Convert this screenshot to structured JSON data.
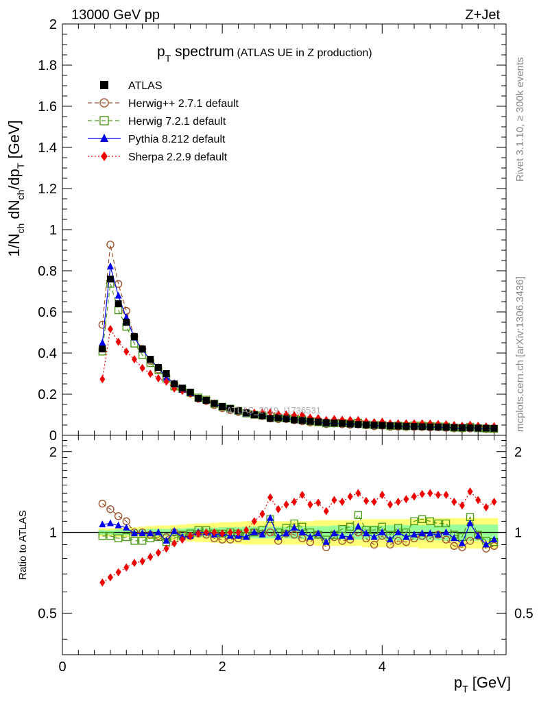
{
  "chart_data": {
    "type": "line",
    "header": {
      "left": "13000 GeV pp",
      "right": "Z+Jet"
    },
    "title": {
      "main": "p",
      "main_sub": "T",
      "main_rest": " spectrum",
      "small": "(ATLAS UE in Z production)"
    },
    "ylabel": {
      "a": "1/N",
      "a_sub": "ch",
      "b": " dN",
      "b_sub": "ch",
      "c": "/dp",
      "c_sub": "T",
      "d": " [GeV]"
    },
    "xlabel": {
      "a": "p",
      "a_sub": "T",
      "b": " [GeV]"
    },
    "ratio_ylabel": "Ratio to ATLAS",
    "side_text_top": "Rivet 3.1.10, ≥ 300k events",
    "side_text_bottom": "mcplots.cern.ch [arXiv:1306.3436]",
    "watermark": "ATLAS_2019_I1736531",
    "xlim": [
      0,
      5.55
    ],
    "ylim": [
      0,
      2
    ],
    "ratio_ylim": [
      0.35,
      2.3
    ],
    "x_ticks": [
      "0",
      "2",
      "4"
    ],
    "x_tick_values": [
      0,
      2,
      4
    ],
    "y_ticks": [
      "0",
      "0.2",
      "0.4",
      "0.6",
      "0.8",
      "1",
      "1.2",
      "1.4",
      "1.6",
      "1.8",
      "2"
    ],
    "y_tick_values": [
      0,
      0.2,
      0.4,
      0.6,
      0.8,
      1,
      1.2,
      1.4,
      1.6,
      1.8,
      2
    ],
    "ratio_ticks": [
      "0.5",
      "1",
      "2"
    ],
    "ratio_tick_values": [
      0.5,
      1,
      2
    ],
    "x": [
      0.5,
      0.6,
      0.7,
      0.8,
      0.9,
      1.0,
      1.1,
      1.2,
      1.3,
      1.4,
      1.5,
      1.6,
      1.7,
      1.8,
      1.9,
      2.0,
      2.1,
      2.2,
      2.3,
      2.4,
      2.5,
      2.6,
      2.7,
      2.8,
      2.9,
      3.0,
      3.1,
      3.2,
      3.3,
      3.4,
      3.5,
      3.6,
      3.7,
      3.8,
      3.9,
      4.0,
      4.1,
      4.2,
      4.3,
      4.4,
      4.5,
      4.6,
      4.7,
      4.8,
      4.9,
      5.0,
      5.1,
      5.2,
      5.3,
      5.4
    ],
    "data": {
      "name": "ATLAS",
      "values": [
        0.42,
        0.76,
        0.64,
        0.55,
        0.48,
        0.42,
        0.37,
        0.33,
        0.3,
        0.25,
        0.23,
        0.21,
        0.18,
        0.17,
        0.155,
        0.14,
        0.13,
        0.12,
        0.11,
        0.1,
        0.095,
        0.082,
        0.085,
        0.08,
        0.075,
        0.072,
        0.068,
        0.065,
        0.062,
        0.06,
        0.058,
        0.055,
        0.053,
        0.051,
        0.049,
        0.048,
        0.046,
        0.045,
        0.044,
        0.043,
        0.042,
        0.041,
        0.04,
        0.039,
        0.038,
        0.037,
        0.036,
        0.035,
        0.035,
        0.034
      ],
      "band_outer": [
        0.035,
        0.035,
        0.04,
        0.04,
        0.045,
        0.05,
        0.055,
        0.06,
        0.06,
        0.065,
        0.07,
        0.075,
        0.08,
        0.08,
        0.085,
        0.09,
        0.09,
        0.095,
        0.1,
        0.1,
        0.1,
        0.1,
        0.1,
        0.1,
        0.1,
        0.1,
        0.1,
        0.11,
        0.11,
        0.11,
        0.11,
        0.11,
        0.11,
        0.12,
        0.12,
        0.12,
        0.12,
        0.12,
        0.12,
        0.12,
        0.13,
        0.13,
        0.13,
        0.13,
        0.13,
        0.13,
        0.13,
        0.13,
        0.13,
        0.13
      ],
      "band_inner": [
        0.02,
        0.02,
        0.025,
        0.025,
        0.025,
        0.03,
        0.03,
        0.03,
        0.03,
        0.035,
        0.035,
        0.04,
        0.04,
        0.04,
        0.04,
        0.045,
        0.045,
        0.045,
        0.05,
        0.05,
        0.05,
        0.05,
        0.05,
        0.05,
        0.055,
        0.055,
        0.055,
        0.055,
        0.055,
        0.06,
        0.06,
        0.06,
        0.06,
        0.06,
        0.06,
        0.06,
        0.065,
        0.065,
        0.065,
        0.065,
        0.065,
        0.065,
        0.065,
        0.07,
        0.07,
        0.07,
        0.07,
        0.07,
        0.07,
        0.07
      ]
    },
    "series": [
      {
        "name": "Herwig++ 2.7.1 default",
        "color": "#a0522d",
        "dash": "6,4",
        "marker": "circle",
        "ratio": [
          1.28,
          1.22,
          1.15,
          1.1,
          1.0,
          1.0,
          0.98,
          0.97,
          0.96,
          1.0,
          0.98,
          0.97,
          0.99,
          0.98,
          0.95,
          0.94,
          0.94,
          0.95,
          0.97,
          1.0,
          0.99,
          1.0,
          0.93,
          0.99,
          0.98,
          0.95,
          0.92,
          0.98,
          0.88,
          0.96,
          0.93,
          0.94,
          1.0,
          0.95,
          0.9,
          0.97,
          0.9,
          0.93,
          0.92,
          0.95,
          0.97,
          0.95,
          0.98,
          0.94,
          0.89,
          0.88,
          0.93,
          0.97,
          0.87,
          0.89
        ]
      },
      {
        "name": "Herwig 7.2.1 default",
        "color": "#4d9a1a",
        "dash": "6,4",
        "marker": "square",
        "ratio": [
          0.97,
          0.97,
          0.95,
          0.96,
          0.93,
          0.93,
          0.95,
          0.96,
          0.92,
          0.95,
          0.98,
          0.99,
          1.02,
          1.02,
          0.99,
          0.99,
          1.0,
          0.99,
          0.97,
          1.0,
          1.02,
          1.12,
          1.0,
          1.04,
          1.08,
          1.05,
          1.0,
          0.98,
          0.94,
          0.98,
          1.03,
          1.05,
          1.16,
          1.02,
          1.02,
          1.05,
          0.98,
          1.04,
          1.0,
          1.1,
          1.12,
          1.1,
          1.08,
          1.08,
          0.98,
          0.96,
          1.14,
          0.98,
          0.93,
          0.92
        ]
      },
      {
        "name": "Pythia 8.212 default",
        "color": "#0000ee",
        "dash": "",
        "marker": "triangle",
        "ratio": [
          1.07,
          1.08,
          1.06,
          1.04,
          0.99,
          0.99,
          0.99,
          1.0,
          0.93,
          1.01,
          0.96,
          0.97,
          1.0,
          1.0,
          0.98,
          0.99,
          0.97,
          0.97,
          0.96,
          1.0,
          0.98,
          1.13,
          0.96,
          0.99,
          1.04,
          1.0,
          0.96,
          0.99,
          0.92,
          0.99,
          0.97,
          0.96,
          1.05,
          0.99,
          0.96,
          1.0,
          0.94,
          1.0,
          0.96,
          0.98,
          0.99,
          0.99,
          0.98,
          1.0,
          0.95,
          0.91,
          1.08,
          0.97,
          0.9,
          0.94
        ]
      },
      {
        "name": "Sherpa 2.2.9 default",
        "color": "#ee0000",
        "dash": "2,3",
        "marker": "diamond",
        "ratio": [
          0.65,
          0.68,
          0.71,
          0.74,
          0.77,
          0.78,
          0.81,
          0.84,
          0.87,
          0.91,
          0.94,
          0.97,
          0.99,
          1.0,
          1.0,
          0.99,
          1.0,
          1.0,
          1.02,
          1.1,
          1.17,
          1.35,
          1.22,
          1.27,
          1.3,
          1.38,
          1.27,
          1.29,
          1.2,
          1.32,
          1.3,
          1.36,
          1.4,
          1.31,
          1.3,
          1.38,
          1.27,
          1.3,
          1.33,
          1.36,
          1.39,
          1.4,
          1.38,
          1.38,
          1.3,
          1.26,
          1.42,
          1.32,
          1.24,
          1.3
        ]
      }
    ]
  }
}
